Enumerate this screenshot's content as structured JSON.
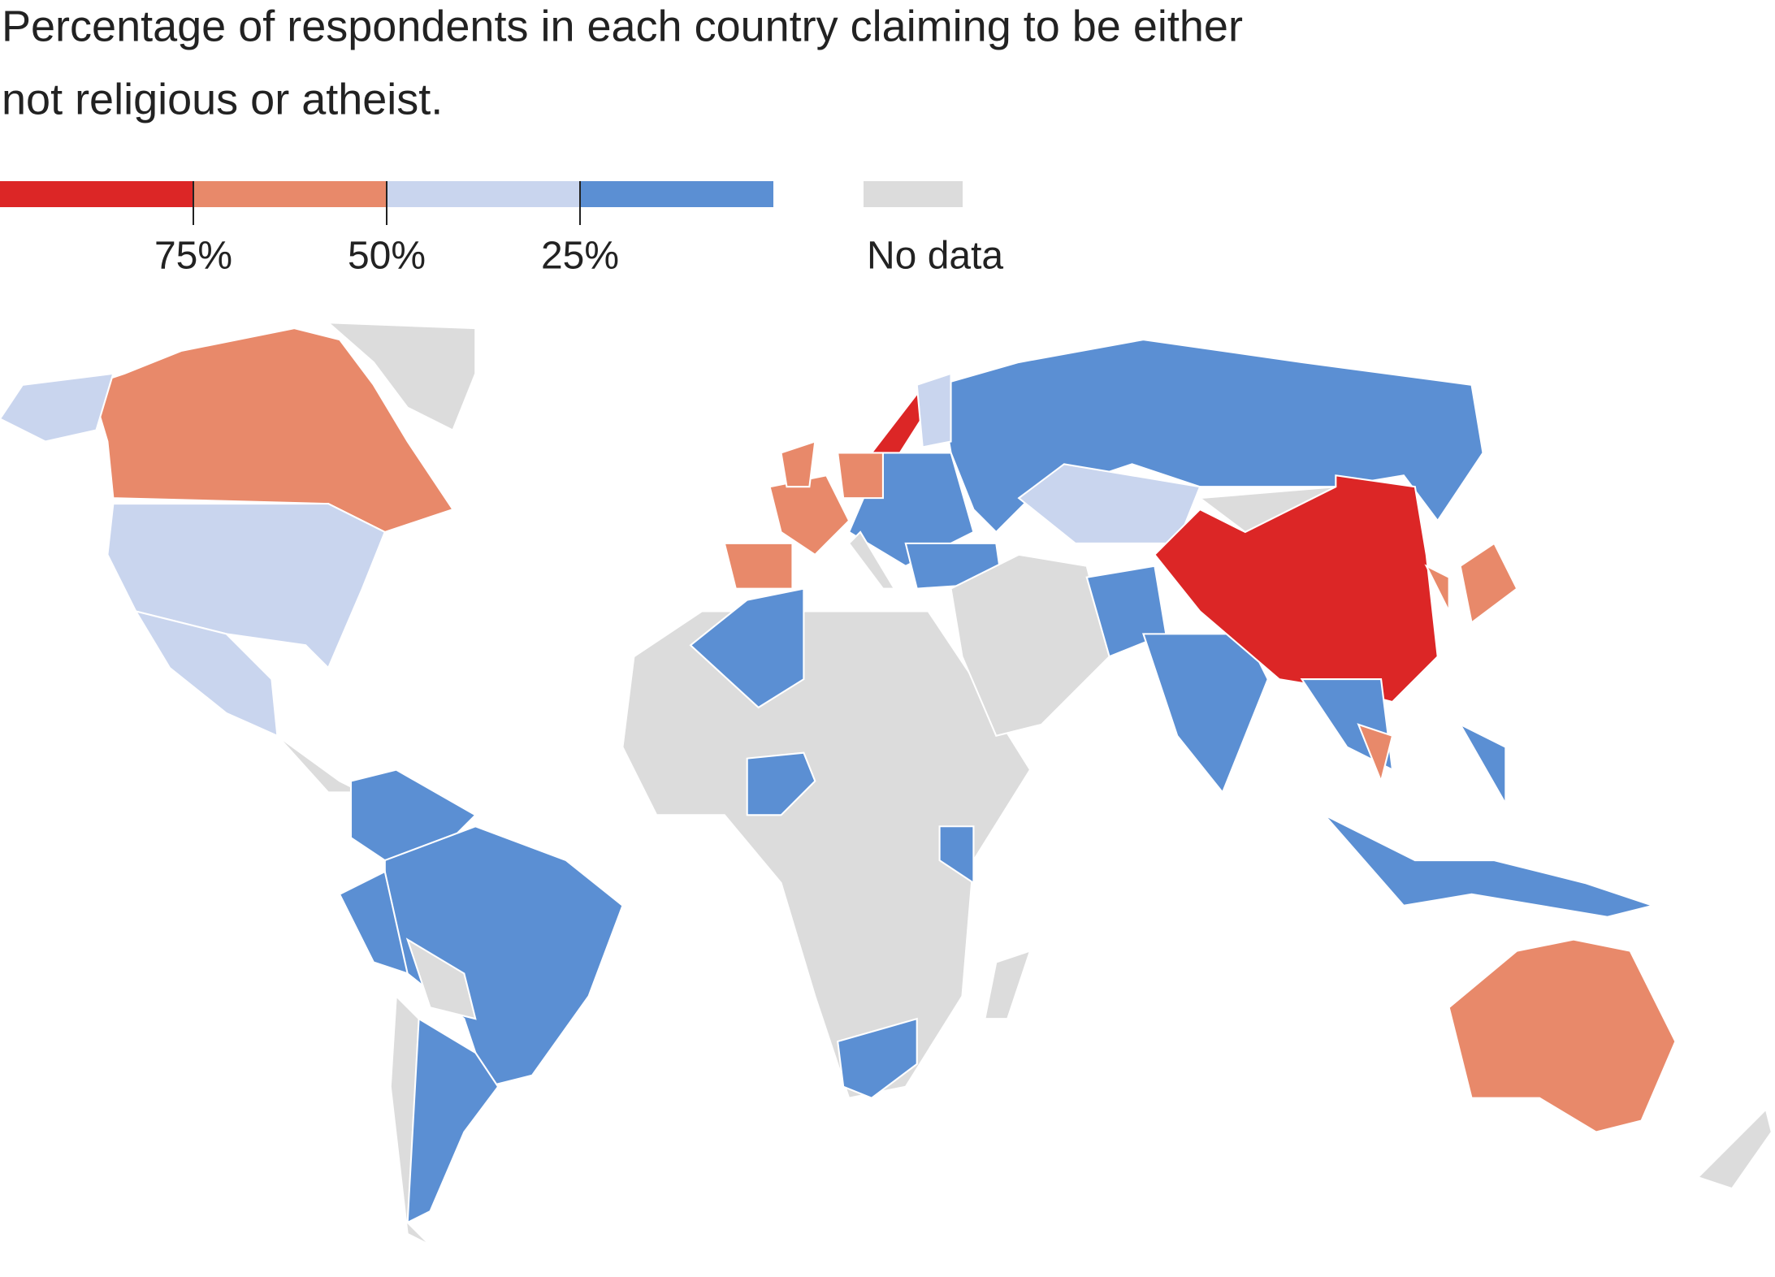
{
  "chart_data": {
    "type": "choropleth",
    "title": "Percentage of respondents in each country claiming to be either",
    "title_line2": "not religious or atheist.",
    "legend": {
      "colors": [
        "#dc2626",
        "#e8896a",
        "#c9d5ee",
        "#5b8fd3"
      ],
      "ticks": [
        {
          "value": 75,
          "label": "75%"
        },
        {
          "value": 50,
          "label": "50%"
        },
        {
          "value": 25,
          "label": "25%"
        }
      ],
      "no_data_color": "#dcdcdc",
      "no_data_label": "No data"
    }
  }
}
